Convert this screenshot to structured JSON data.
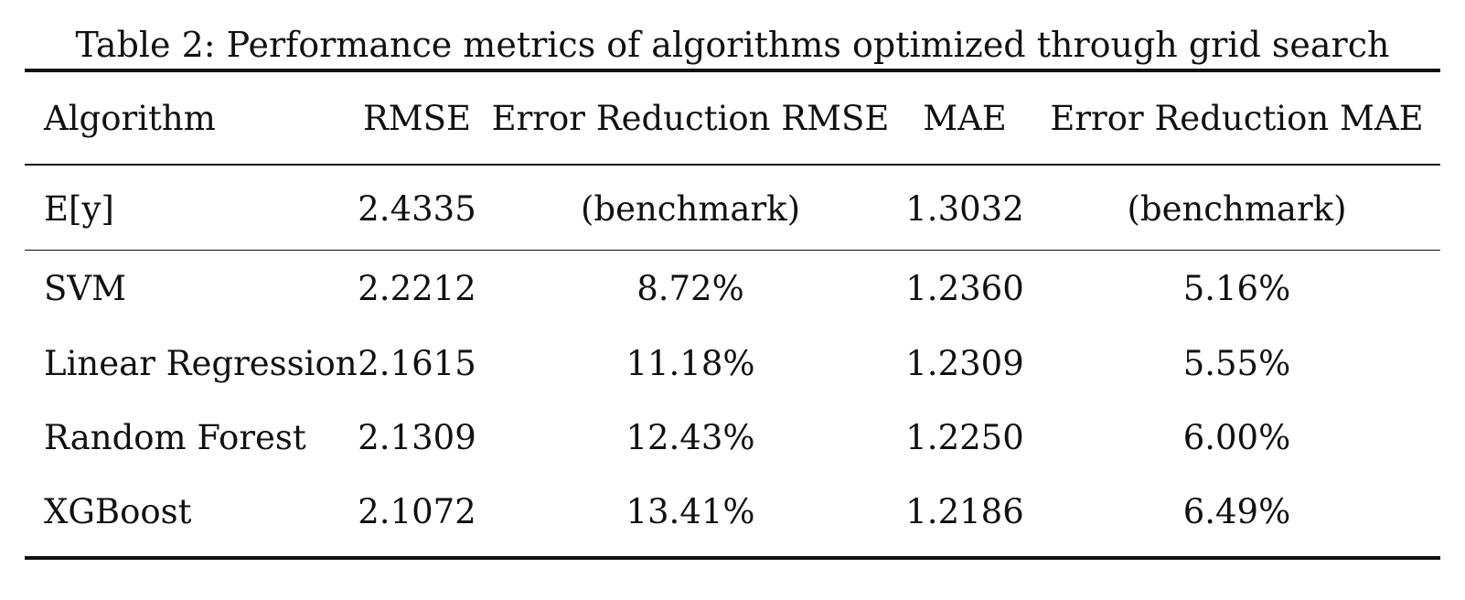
{
  "caption": "Table 2: Performance metrics of algorithms optimized through grid search",
  "table": {
    "headers": [
      "Algorithm",
      "RMSE",
      "Error Reduction RMSE",
      "MAE",
      "Error Reduction MAE"
    ],
    "rows": [
      [
        "E[y]",
        "2.4335",
        "(benchmark)",
        "1.3032",
        "(benchmark)"
      ],
      [
        "SVM",
        "2.2212",
        "8.72%",
        "1.2360",
        "5.16%"
      ],
      [
        "Linear Regression",
        "2.1615",
        "11.18%",
        "1.2309",
        "5.55%"
      ],
      [
        "Random Forest",
        "2.1309",
        "12.43%",
        "1.2250",
        "6.00%"
      ],
      [
        "XGBoost",
        "2.1072",
        "13.41%",
        "1.2186",
        "6.49%"
      ]
    ]
  }
}
